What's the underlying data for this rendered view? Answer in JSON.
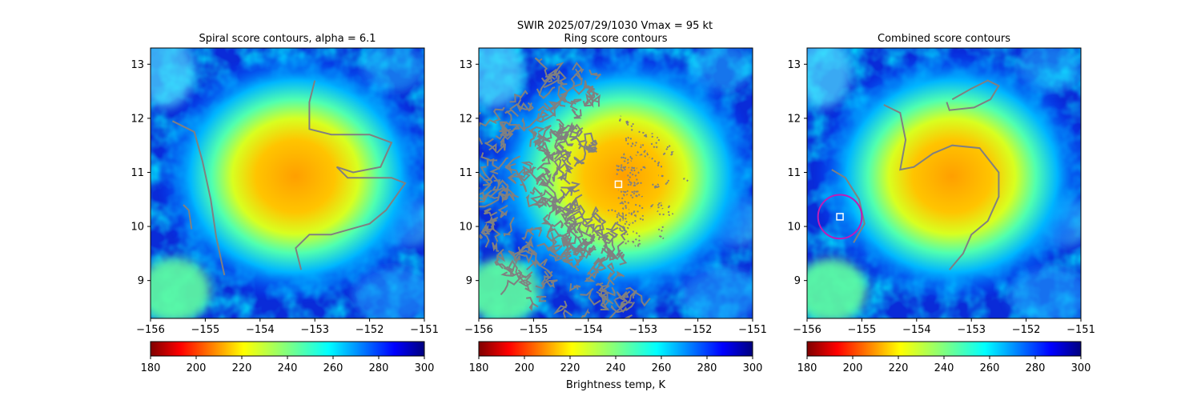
{
  "suptitle": "SWIR  2025/07/29/1030    Vmax = 95 kt",
  "colormap": "jet",
  "contour_color": "#808080",
  "marker_color": "#ffffff",
  "circle_color": "#c01bb7",
  "chart_data": [
    {
      "type": "heatmap",
      "title": "Spiral score contours, alpha =  6.1",
      "xlim": [
        -156,
        -151
      ],
      "ylim": [
        8.3,
        13.3
      ],
      "xticks": [
        "−156",
        "−155",
        "−154",
        "−153",
        "−152",
        "−151"
      ],
      "yticks": [
        "9",
        "10",
        "11",
        "12",
        "13"
      ],
      "storm_center": [
        -153.5,
        10.78
      ],
      "colorbar": {
        "ticks": [
          "180",
          "200",
          "220",
          "240",
          "260",
          "280",
          "300"
        ],
        "range": [
          180,
          300
        ],
        "label": ""
      }
    },
    {
      "type": "heatmap",
      "title": "Ring score contours",
      "xlim": [
        -156,
        -151
      ],
      "ylim": [
        8.3,
        13.3
      ],
      "xticks": [
        "−156",
        "−155",
        "−154",
        "−153",
        "−152",
        "−151"
      ],
      "yticks": [
        "9",
        "10",
        "11",
        "12",
        "13"
      ],
      "storm_center": [
        -153.5,
        10.78
      ],
      "ring_marker": [
        -153.45,
        10.78
      ],
      "colorbar": {
        "ticks": [
          "180",
          "200",
          "220",
          "240",
          "260",
          "280",
          "300"
        ],
        "range": [
          180,
          300
        ],
        "label": "Brightness temp, K"
      }
    },
    {
      "type": "heatmap",
      "title": "Combined score contours",
      "xlim": [
        -156,
        -151
      ],
      "ylim": [
        8.3,
        13.3
      ],
      "xticks": [
        "−156",
        "−155",
        "−154",
        "−153",
        "−152",
        "−151"
      ],
      "yticks": [
        "9",
        "10",
        "11",
        "12",
        "13"
      ],
      "storm_center": [
        -153.5,
        10.78
      ],
      "combined_marker": [
        -155.4,
        10.18
      ],
      "combined_circle_radius_deg": 0.4,
      "colorbar": {
        "ticks": [
          "180",
          "200",
          "220",
          "240",
          "260",
          "280",
          "300"
        ],
        "range": [
          180,
          300
        ],
        "label": ""
      }
    }
  ]
}
